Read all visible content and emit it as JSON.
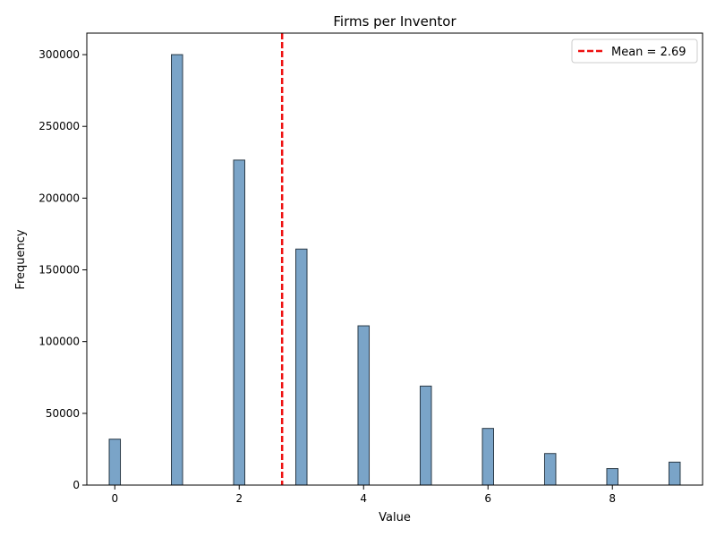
{
  "chart_data": {
    "type": "bar",
    "title": "Firms per Inventor",
    "xlabel": "Value",
    "ylabel": "Frequency",
    "xlim": [
      -0.45,
      9.45
    ],
    "ylim": [
      0,
      315000
    ],
    "x_ticks": [
      0,
      2,
      4,
      6,
      8
    ],
    "y_ticks": [
      0,
      50000,
      100000,
      150000,
      200000,
      250000,
      300000
    ],
    "bar_width": 0.18,
    "series": [
      {
        "x": [
          0,
          1,
          2,
          3,
          4,
          5,
          6,
          7,
          8,
          9
        ],
        "values": [
          32000,
          300000,
          226500,
          164500,
          111000,
          69000,
          39500,
          22000,
          11500,
          16000
        ]
      }
    ],
    "mean": {
      "value": 2.69,
      "label": "Mean = 2.69"
    },
    "legend_position": "top-right",
    "grid": false,
    "colors": {
      "bar_fill": "#7aa4c8",
      "bar_edge": "#2b3a47",
      "mean_line": "#ee1111"
    }
  }
}
